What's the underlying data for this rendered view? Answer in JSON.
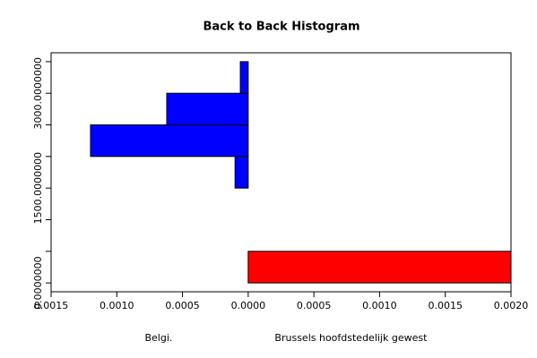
{
  "chart_data": {
    "type": "back_to_back_histogram",
    "title": "Back to Back Histogram",
    "bins": [
      0,
      500,
      1000,
      1500,
      2000,
      2500,
      3000,
      3500
    ],
    "series": [
      {
        "name": "Belgi.",
        "color": "#0000ff",
        "side": "left",
        "values": [
          0,
          0,
          0,
          0.0001,
          0.0012,
          0.00062,
          6e-05
        ]
      },
      {
        "name": "Brussels hoofdstedelijk gewest",
        "color": "#ff0000",
        "side": "right",
        "values": [
          0.002,
          0,
          0,
          0,
          0,
          0,
          0
        ]
      }
    ],
    "xlim": [
      -0.0015,
      0.002
    ],
    "xticks": [
      {
        "value": -0.0015,
        "label": "0.0015"
      },
      {
        "value": -0.001,
        "label": "0.0010"
      },
      {
        "value": -0.0005,
        "label": "0.0005"
      },
      {
        "value": 0,
        "label": "0.0000"
      },
      {
        "value": 0.0005,
        "label": "0.0005"
      },
      {
        "value": 0.001,
        "label": "0.0010"
      },
      {
        "value": 0.0015,
        "label": "0.0015"
      },
      {
        "value": 0.002,
        "label": "0.0020"
      }
    ],
    "ylim": [
      -140,
      3640
    ],
    "yticks": [
      {
        "value": 0,
        "label": "0.0000000"
      },
      {
        "value": 1500,
        "label": "1500.0000000"
      },
      {
        "value": 3000,
        "label": "3000.0000000"
      }
    ],
    "yticks_unlabeled": [
      500,
      1000,
      2000,
      2500,
      3500
    ]
  }
}
